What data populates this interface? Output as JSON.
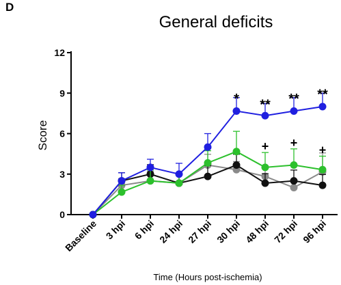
{
  "panel_label": "D",
  "chart_data": {
    "type": "line",
    "title": "General deficits",
    "xlabel": "Time (Hours post-ischemia)",
    "ylabel": "Score",
    "ylim": [
      0,
      12
    ],
    "yticks": [
      0,
      3,
      6,
      9,
      12
    ],
    "categories": [
      "Baseline",
      "3 hpi",
      "6 hpi",
      "24 hpi",
      "27 hpi",
      "30 hpi",
      "48 hpi",
      "72 hpi",
      "96 hpi"
    ],
    "grid": false,
    "series": [
      {
        "color": "#1f1fe0",
        "values": [
          0,
          2.5,
          3.5,
          3.0,
          5.0,
          7.67,
          7.33,
          7.67,
          8.0
        ],
        "errors": [
          0,
          0.6,
          0.6,
          0.8,
          1.0,
          1.0,
          0.9,
          1.0,
          1.0
        ]
      },
      {
        "color": "#2cc02c",
        "values": [
          0,
          1.67,
          2.5,
          2.33,
          3.83,
          4.67,
          3.5,
          3.67,
          3.33
        ],
        "errors": [
          0,
          0.5,
          0.8,
          0.6,
          0.9,
          1.5,
          1.1,
          1.2,
          1.0
        ]
      },
      {
        "color": "#111111",
        "values": [
          0,
          2.5,
          3.0,
          2.33,
          2.83,
          3.67,
          2.33,
          2.5,
          2.17
        ],
        "errors": [
          0,
          0.6,
          0.7,
          0.6,
          0.8,
          0.8,
          0.7,
          0.8,
          0.8
        ]
      },
      {
        "color": "#8a8a8a",
        "values": [
          0,
          2.17,
          2.5,
          2.33,
          3.67,
          3.33,
          2.83,
          2.0,
          3.17
        ],
        "errors": [
          0,
          0.5,
          0.7,
          0.6,
          0.8,
          0.6,
          0.8,
          0.6,
          1.4
        ]
      }
    ],
    "annotations": [
      {
        "category": "30 hpi",
        "text": "*"
      },
      {
        "category": "48 hpi",
        "text": "**"
      },
      {
        "category": "72 hpi",
        "text": "**"
      },
      {
        "category": "96 hpi",
        "text": "**"
      },
      {
        "category": "48 hpi",
        "text": "+"
      },
      {
        "category": "72 hpi",
        "text": "+"
      },
      {
        "category": "96 hpi",
        "text": "+"
      }
    ]
  }
}
